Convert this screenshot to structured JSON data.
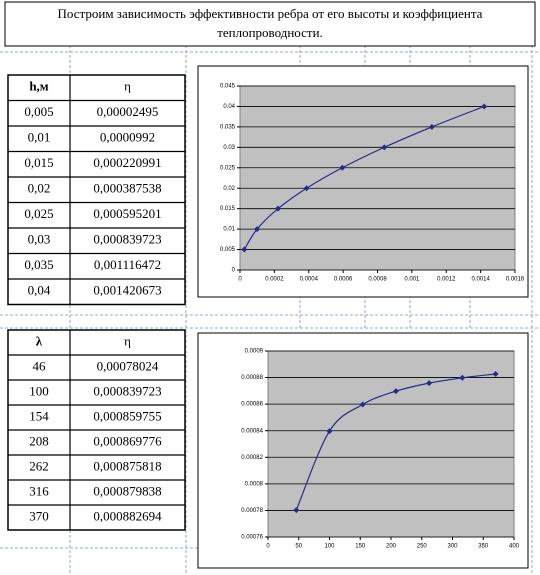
{
  "header": {
    "title_lines": [
      "Построим зависимость эффективности ребра от его высоты и коэффициента",
      "теплопроводности."
    ]
  },
  "table1": {
    "columns": [
      "h,м",
      "η"
    ],
    "rows": [
      [
        "0,005",
        "0,00002495"
      ],
      [
        "0,01",
        "0,0000992"
      ],
      [
        "0,015",
        "0,000220991"
      ],
      [
        "0,02",
        "0,000387538"
      ],
      [
        "0,025",
        "0,000595201"
      ],
      [
        "0,03",
        "0,000839723"
      ],
      [
        "0,035",
        "0,001116472"
      ],
      [
        "0,04",
        "0,001420673"
      ]
    ]
  },
  "table2": {
    "columns": [
      "λ",
      "η"
    ],
    "rows": [
      [
        "46",
        "0,00078024"
      ],
      [
        "100",
        "0,000839723"
      ],
      [
        "154",
        "0,000859755"
      ],
      [
        "208",
        "0,000869776"
      ],
      [
        "262",
        "0,000875818"
      ],
      [
        "316",
        "0,000879838"
      ],
      [
        "370",
        "0,000882694"
      ]
    ]
  },
  "chart_data": [
    {
      "type": "scatter",
      "x": [
        2.495e-05,
        9.92e-05,
        0.000220991,
        0.000387538,
        0.000595201,
        0.000839723,
        0.001116472,
        0.001420673
      ],
      "values": [
        0.005,
        0.01,
        0.015,
        0.02,
        0.025,
        0.03,
        0.035,
        0.04
      ],
      "color": "#2a2a8c",
      "xlim": [
        0,
        0.0016
      ],
      "xticks": [
        0,
        0.0002,
        0.0004,
        0.0006,
        0.0008,
        0.001,
        0.0012,
        0.0014,
        0.0016
      ],
      "ylim": [
        0,
        0.045
      ],
      "yticks": [
        0,
        0.005,
        0.01,
        0.015,
        0.02,
        0.025,
        0.03,
        0.035,
        0.04,
        0.045
      ],
      "grid": true
    },
    {
      "type": "scatter",
      "x": [
        46,
        100,
        154,
        208,
        262,
        316,
        370
      ],
      "values": [
        0.00078024,
        0.000839723,
        0.000859755,
        0.000869776,
        0.000875818,
        0.000879838,
        0.000882694
      ],
      "color": "#2a2a8c",
      "xlim": [
        0,
        400
      ],
      "xticks": [
        0,
        50,
        100,
        150,
        200,
        250,
        300,
        350,
        400
      ],
      "ylim": [
        0.00076,
        0.0009
      ],
      "yticks": [
        0.00076,
        0.00078,
        0.0008,
        0.00082,
        0.00084,
        0.00086,
        0.00088,
        0.0009
      ],
      "grid": true
    }
  ]
}
